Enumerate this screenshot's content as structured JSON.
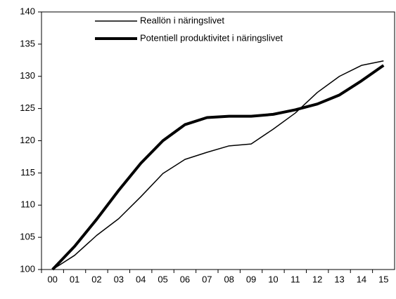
{
  "chart_data": {
    "type": "line",
    "categories": [
      "00",
      "01",
      "02",
      "03",
      "04",
      "05",
      "06",
      "07",
      "08",
      "09",
      "10",
      "11",
      "12",
      "13",
      "14",
      "15"
    ],
    "series": [
      {
        "name": "Reallön i näringslivet",
        "color": "#000000",
        "width": 1.5,
        "values": [
          100,
          102.2,
          105.3,
          107.9,
          111.3,
          114.9,
          117.1,
          118.2,
          119.2,
          119.5,
          121.8,
          124.3,
          127.5,
          130.0,
          131.7,
          132.4
        ]
      },
      {
        "name": "Potentiell produktivitet i näringslivet",
        "color": "#000000",
        "width": 4,
        "values": [
          100,
          103.6,
          107.8,
          112.3,
          116.5,
          120.0,
          122.5,
          123.6,
          123.8,
          123.8,
          124.1,
          124.8,
          125.7,
          127.1,
          129.3,
          131.7
        ]
      }
    ],
    "ylim": [
      100,
      140
    ],
    "yticks": [
      100,
      105,
      110,
      115,
      120,
      125,
      130,
      135,
      140
    ],
    "grid": false,
    "legend": "top-left"
  }
}
